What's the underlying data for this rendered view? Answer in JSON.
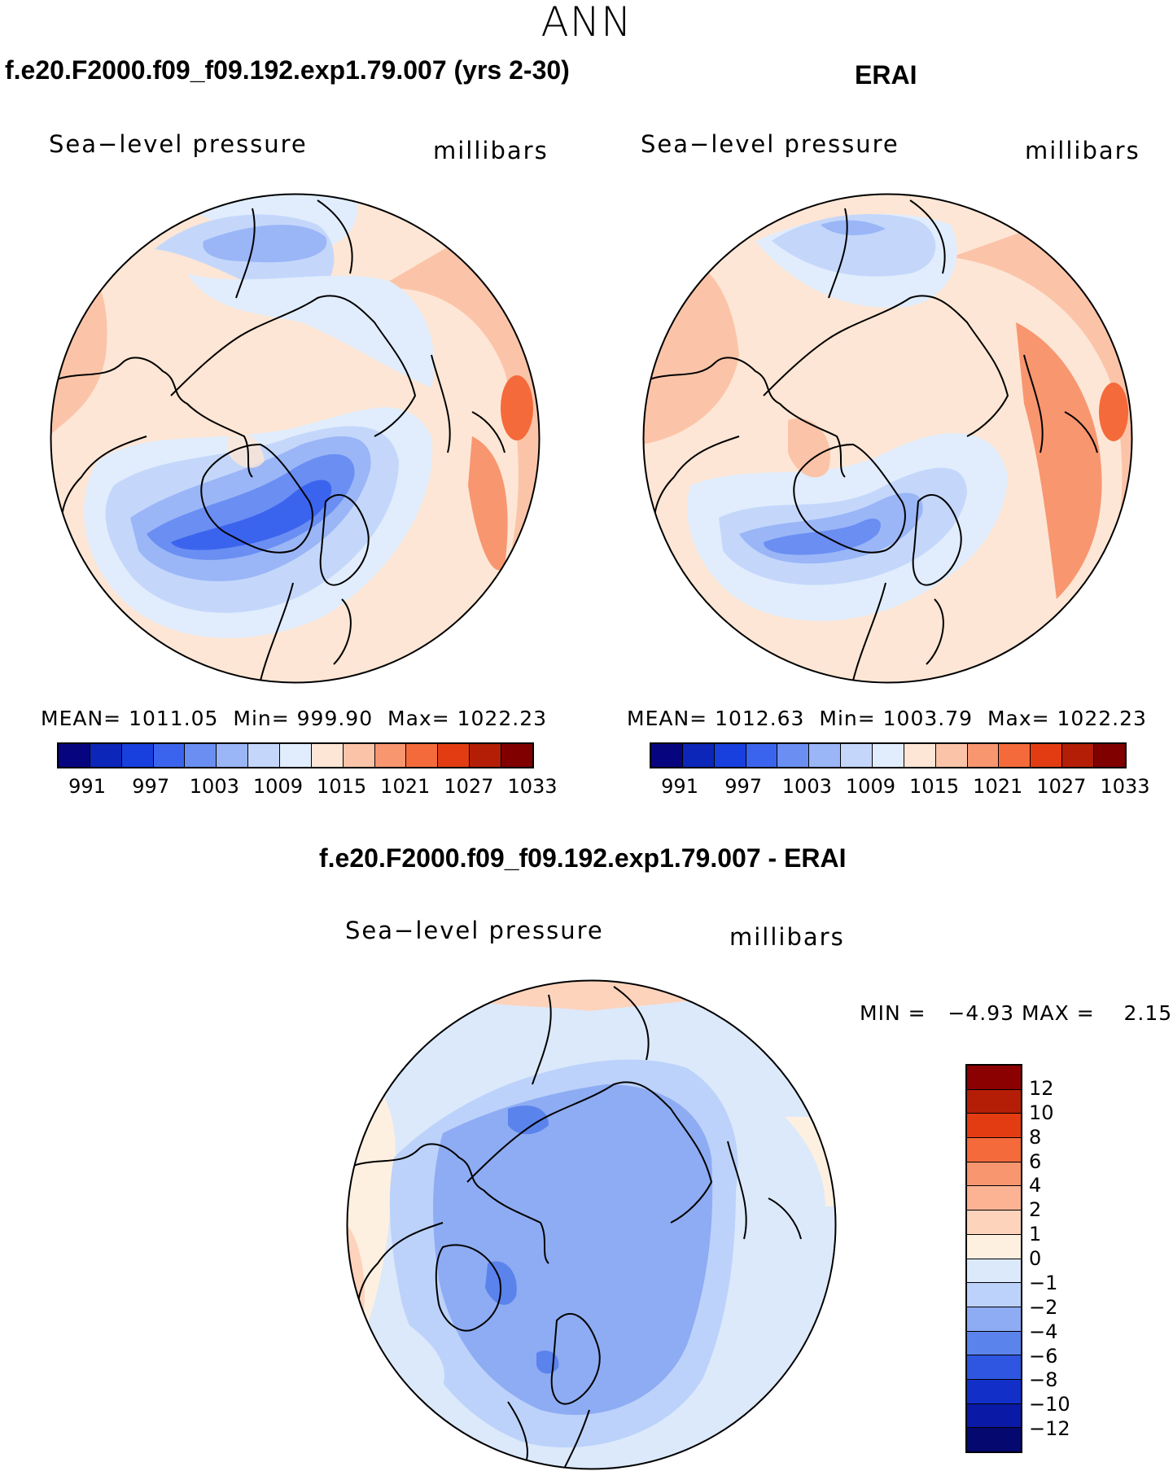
{
  "figure": {
    "title": "ANN"
  },
  "panels": [
    {
      "case_title": "f.e20.F2000.f09_f09.192.exp1.79.007 (yrs 2-30)",
      "variable_label": "Sea−level pressure",
      "units_label": "millibars",
      "stats": {
        "mean_label": "MEAN=",
        "mean": "1011.05",
        "min_label": "Min=",
        "min": "999.90",
        "max_label": "Max=",
        "max": "1022.23"
      }
    },
    {
      "case_title": "ERAI",
      "variable_label": "Sea−level pressure",
      "units_label": "millibars",
      "stats": {
        "mean_label": "MEAN=",
        "mean": "1012.63",
        "min_label": "Min=",
        "min": "1003.79",
        "max_label": "Max=",
        "max": "1022.23"
      }
    },
    {
      "case_title": "f.e20.F2000.f09_f09.192.exp1.79.007 - ERAI",
      "variable_label": "Sea−level pressure",
      "units_label": "millibars",
      "stats": {
        "min_label": "MIN =",
        "min": "−4.93",
        "max_label": "MAX =",
        "max": "2.15"
      }
    }
  ],
  "colorbar_field": {
    "tick_labels": [
      "991",
      "997",
      "1003",
      "1009",
      "1015",
      "1021",
      "1027",
      "1033"
    ],
    "colors": [
      "#06047f",
      "#0c26b9",
      "#1840df",
      "#3b64ee",
      "#6a8ef2",
      "#9ab6f7",
      "#c4d7fb",
      "#e1edfc",
      "#fde6d5",
      "#fbc4a8",
      "#f89670",
      "#f56a3a",
      "#e33c12",
      "#b41e06",
      "#800000"
    ]
  },
  "colorbar_diff": {
    "tick_labels": [
      "12",
      "10",
      "8",
      "6",
      "4",
      "2",
      "1",
      "0",
      "−1",
      "−2",
      "−4",
      "−6",
      "−8",
      "−10",
      "−12"
    ],
    "colors": [
      "#8b0000",
      "#b41e06",
      "#e33c12",
      "#f56a3a",
      "#f89670",
      "#fbb394",
      "#fdd3bc",
      "#fef0e1",
      "#dce9fb",
      "#bcd2fa",
      "#8eacf3",
      "#5b83ec",
      "#2e56e0",
      "#1230c8",
      "#0a1aa6",
      "#04086f"
    ]
  }
}
